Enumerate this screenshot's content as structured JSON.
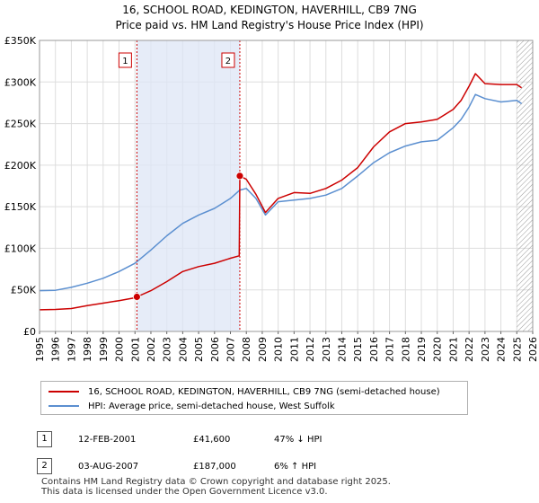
{
  "header": {
    "title": "16, SCHOOL ROAD, KEDINGTON, HAVERHILL, CB9 7NG",
    "subtitle": "Price paid vs. HM Land Registry's House Price Index (HPI)"
  },
  "chart_data": {
    "type": "line",
    "title": "16, SCHOOL ROAD, KEDINGTON, HAVERHILL, CB9 7NG",
    "subtitle": "Price paid vs. HM Land Registry's House Price Index (HPI)",
    "xlim": [
      1995,
      2026
    ],
    "ylim": [
      0,
      350000
    ],
    "x_ticks": [
      "1995",
      "1996",
      "1997",
      "1998",
      "1999",
      "2000",
      "2001",
      "2002",
      "2003",
      "2004",
      "2005",
      "2006",
      "2007",
      "2008",
      "2009",
      "2010",
      "2011",
      "2012",
      "2013",
      "2014",
      "2015",
      "2016",
      "2017",
      "2018",
      "2019",
      "2020",
      "2021",
      "2022",
      "2023",
      "2024",
      "2025",
      "2026"
    ],
    "y_ticks": [
      {
        "value": 0,
        "label": "£0"
      },
      {
        "value": 50000,
        "label": "£50K"
      },
      {
        "value": 100000,
        "label": "£100K"
      },
      {
        "value": 150000,
        "label": "£150K"
      },
      {
        "value": 200000,
        "label": "£200K"
      },
      {
        "value": 250000,
        "label": "£250K"
      },
      {
        "value": 300000,
        "label": "£300K"
      },
      {
        "value": 350000,
        "label": "£350K"
      }
    ],
    "grid": true,
    "shaded_span": [
      2001.12,
      2007.59
    ],
    "hatched_after": 2025.0,
    "series": [
      {
        "name": "16, SCHOOL ROAD, KEDINGTON, HAVERHILL, CB9 7NG (semi-detached house)",
        "color": "#cc0000",
        "points": [
          [
            1995.0,
            26000
          ],
          [
            1996.0,
            26500
          ],
          [
            1997.0,
            27500
          ],
          [
            1998.0,
            31000
          ],
          [
            1999.0,
            34000
          ],
          [
            2000.0,
            37000
          ],
          [
            2001.0,
            40500
          ],
          [
            2001.12,
            41600
          ],
          [
            2002.0,
            49000
          ],
          [
            2003.0,
            60000
          ],
          [
            2004.0,
            72000
          ],
          [
            2005.0,
            78000
          ],
          [
            2006.0,
            82000
          ],
          [
            2007.0,
            88000
          ],
          [
            2007.55,
            91000
          ],
          [
            2007.59,
            187000
          ],
          [
            2008.0,
            183000
          ],
          [
            2008.6,
            165000
          ],
          [
            2009.2,
            143000
          ],
          [
            2010.0,
            160000
          ],
          [
            2011.0,
            167000
          ],
          [
            2012.0,
            166000
          ],
          [
            2013.0,
            172000
          ],
          [
            2014.0,
            182000
          ],
          [
            2015.0,
            197000
          ],
          [
            2016.0,
            222000
          ],
          [
            2017.0,
            240000
          ],
          [
            2018.0,
            250000
          ],
          [
            2019.0,
            252000
          ],
          [
            2020.0,
            255000
          ],
          [
            2021.0,
            267000
          ],
          [
            2021.5,
            278000
          ],
          [
            2022.0,
            295000
          ],
          [
            2022.4,
            310000
          ],
          [
            2023.0,
            298000
          ],
          [
            2024.0,
            297000
          ],
          [
            2025.0,
            297000
          ],
          [
            2025.3,
            293000
          ]
        ]
      },
      {
        "name": "HPI: Average price, semi-detached house, West Suffolk",
        "color": "#5b8fd0",
        "points": [
          [
            1995.0,
            49000
          ],
          [
            1996.0,
            49500
          ],
          [
            1997.0,
            53000
          ],
          [
            1998.0,
            58000
          ],
          [
            1999.0,
            64000
          ],
          [
            2000.0,
            72000
          ],
          [
            2001.0,
            82000
          ],
          [
            2002.0,
            98000
          ],
          [
            2003.0,
            115000
          ],
          [
            2004.0,
            130000
          ],
          [
            2005.0,
            140000
          ],
          [
            2006.0,
            148000
          ],
          [
            2007.0,
            160000
          ],
          [
            2007.59,
            170000
          ],
          [
            2008.0,
            172000
          ],
          [
            2008.6,
            160000
          ],
          [
            2009.2,
            140000
          ],
          [
            2010.0,
            156000
          ],
          [
            2011.0,
            158000
          ],
          [
            2012.0,
            160000
          ],
          [
            2013.0,
            164000
          ],
          [
            2014.0,
            172000
          ],
          [
            2015.0,
            187000
          ],
          [
            2016.0,
            203000
          ],
          [
            2017.0,
            215000
          ],
          [
            2018.0,
            223000
          ],
          [
            2019.0,
            228000
          ],
          [
            2020.0,
            230000
          ],
          [
            2021.0,
            245000
          ],
          [
            2021.5,
            255000
          ],
          [
            2022.0,
            270000
          ],
          [
            2022.4,
            285000
          ],
          [
            2023.0,
            280000
          ],
          [
            2024.0,
            276000
          ],
          [
            2025.0,
            278000
          ],
          [
            2025.3,
            274000
          ]
        ]
      }
    ],
    "annotations": [
      {
        "label": "1",
        "x": 2001.12,
        "y": 41600
      },
      {
        "label": "2",
        "x": 2007.59,
        "y": 187000
      }
    ]
  },
  "legend": {
    "items": [
      {
        "label": "16, SCHOOL ROAD, KEDINGTON, HAVERHILL, CB9 7NG (semi-detached house)",
        "color": "#cc0000"
      },
      {
        "label": "HPI: Average price, semi-detached house, West Suffolk",
        "color": "#5b8fd0"
      }
    ]
  },
  "sales": [
    {
      "num": "1",
      "date": "12-FEB-2001",
      "price": "£41,600",
      "hpi": "47% ↓ HPI"
    },
    {
      "num": "2",
      "date": "03-AUG-2007",
      "price": "£187,000",
      "hpi": "6% ↑ HPI"
    }
  ],
  "footer": {
    "line1": "Contains HM Land Registry data © Crown copyright and database right 2025.",
    "line2": "This data is licensed under the Open Government Licence v3.0."
  }
}
